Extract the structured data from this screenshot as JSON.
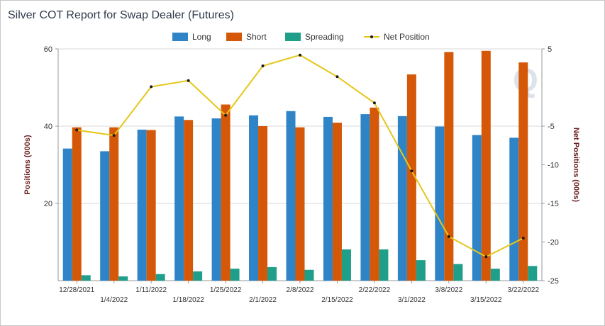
{
  "chart_data": {
    "type": "bar",
    "title": "Silver COT Report for Swap Dealer (Futures)",
    "ylabel": "Positions (000s)",
    "y2label": "Net Positions (000s)",
    "ylim": [
      0,
      60
    ],
    "y2lim": [
      -25,
      5
    ],
    "yticks": [
      "20",
      "40",
      "60"
    ],
    "y2ticks": [
      "5",
      "-5",
      "-10",
      "-15",
      "-20",
      "-25"
    ],
    "grid": true,
    "legend_position": "top-center",
    "categories": [
      "12/28/2021",
      "1/4/2022",
      "1/11/2022",
      "1/18/2022",
      "1/25/2022",
      "2/1/2022",
      "2/8/2022",
      "2/15/2022",
      "2/22/2022",
      "3/1/2022",
      "3/8/2022",
      "3/15/2022",
      "3/22/2022"
    ],
    "series": [
      {
        "name": "Long",
        "kind": "bar",
        "axis": "left",
        "color": "#2e84c6",
        "values": [
          34.2,
          33.5,
          39.1,
          42.5,
          42.0,
          42.8,
          43.9,
          42.4,
          43.1,
          42.6,
          39.9,
          37.7,
          37.0
        ]
      },
      {
        "name": "Short",
        "kind": "bar",
        "axis": "left",
        "color": "#d55808",
        "values": [
          39.7,
          39.7,
          39.0,
          41.6,
          45.6,
          40.0,
          39.7,
          40.9,
          44.8,
          53.4,
          59.2,
          59.5,
          56.5
        ]
      },
      {
        "name": "Spreading",
        "kind": "bar",
        "axis": "left",
        "color": "#1f9e89",
        "values": [
          1.4,
          1.1,
          1.7,
          2.4,
          3.1,
          3.5,
          2.8,
          8.1,
          8.1,
          5.3,
          4.3,
          3.1,
          3.8
        ]
      },
      {
        "name": "Net Position",
        "kind": "line",
        "axis": "right",
        "color": "#e6c619",
        "values": [
          -5.5,
          -6.2,
          0.1,
          0.9,
          -3.6,
          2.8,
          4.2,
          1.4,
          -2.0,
          -10.8,
          -19.3,
          -21.9,
          -19.5
        ]
      }
    ]
  },
  "watermark": "Q"
}
